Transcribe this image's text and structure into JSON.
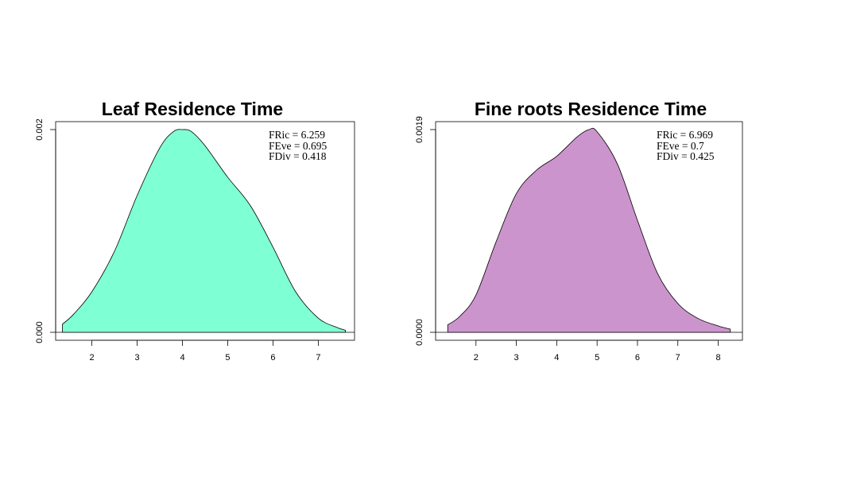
{
  "chart_data": [
    {
      "type": "area",
      "title": "Leaf Residence Time",
      "fill_color": "#7fffd4",
      "xlim": [
        1.2,
        7.8
      ],
      "ylim": [
        0,
        0.002
      ],
      "xticks": [
        2,
        3,
        4,
        5,
        6,
        7
      ],
      "xtick_labels": [
        "2",
        "3",
        "4",
        "5",
        "6",
        "7"
      ],
      "yticks": [
        0,
        0.002
      ],
      "ytick_labels": [
        "0.000",
        "0.002"
      ],
      "x": [
        1.35,
        1.6,
        2.0,
        2.5,
        3.0,
        3.5,
        3.8,
        4.0,
        4.2,
        4.5,
        5.0,
        5.5,
        6.0,
        6.5,
        7.0,
        7.4,
        7.6
      ],
      "y": [
        8e-05,
        0.00018,
        0.0004,
        0.0008,
        0.00135,
        0.00182,
        0.00198,
        0.002,
        0.00198,
        0.00184,
        0.00153,
        0.00125,
        0.00084,
        0.0004,
        0.00014,
        5e-05,
        2e-05
      ],
      "annotations": [
        "FRic  = 6.259",
        "FEve = 0.695",
        "FDiv  = 0.418"
      ],
      "grid": false
    },
    {
      "type": "area",
      "title": "Fine roots Residence Time",
      "fill_color": "#cc94cc",
      "xlim": [
        1.0,
        8.6
      ],
      "ylim": [
        0,
        0.0019
      ],
      "xticks": [
        2,
        3,
        4,
        5,
        6,
        7,
        8
      ],
      "xtick_labels": [
        "2",
        "3",
        "4",
        "5",
        "6",
        "7",
        "8"
      ],
      "yticks": [
        0,
        0.0019
      ],
      "ytick_labels": [
        "0.0000",
        "0.0019"
      ],
      "x": [
        1.3,
        1.6,
        2.0,
        2.5,
        3.0,
        3.5,
        4.0,
        4.5,
        4.8,
        5.0,
        5.5,
        6.0,
        6.5,
        7.0,
        7.5,
        8.0,
        8.3
      ],
      "y": [
        7e-05,
        0.00015,
        0.00035,
        0.00085,
        0.0013,
        0.00152,
        0.00165,
        0.00183,
        0.0019,
        0.00188,
        0.00158,
        0.00105,
        0.00055,
        0.00027,
        0.00013,
        6e-05,
        3e-05
      ],
      "annotations": [
        "FRic  = 6.969",
        "FEve = 0.7",
        "FDiv  = 0.425"
      ],
      "grid": false
    }
  ]
}
